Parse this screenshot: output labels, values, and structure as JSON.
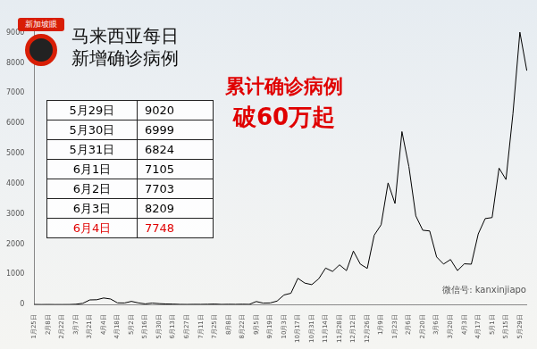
{
  "chart_data": {
    "type": "line",
    "title": "马来西亚每日新增确诊病例",
    "annotations": [
      "累计确诊病例",
      "破60万起"
    ],
    "categories": [
      "1月25日",
      null,
      "2月8日",
      null,
      "2月22日",
      null,
      "3月7日",
      null,
      "3月21日",
      null,
      "4月4日",
      null,
      "4月18日",
      null,
      "5月2日",
      null,
      "5月16日",
      null,
      "5月30日",
      null,
      "6月13日",
      null,
      "6月27日",
      null,
      "7月11日",
      null,
      "7月25日",
      null,
      "8月8日",
      null,
      "8月22日",
      null,
      "9月5日",
      null,
      "9月19日",
      null,
      "10月3日",
      null,
      "10月17日",
      null,
      "10月31日",
      null,
      "11月14日",
      null,
      "11月28日",
      null,
      "12月12日",
      null,
      "12月26日",
      null,
      "1月9日",
      null,
      "1月23日",
      null,
      "2月6日",
      null,
      "2月20日",
      null,
      "3月6日",
      null,
      "3月20日",
      null,
      "4月3日",
      null,
      "4月17日",
      null,
      "5月1日",
      null,
      "5月15日",
      null,
      "5月29日",
      null
    ],
    "values": [
      3,
      0,
      2,
      0,
      0,
      1,
      10,
      41,
      153,
      159,
      217,
      184,
      54,
      51,
      105,
      54,
      22,
      48,
      30,
      19,
      15,
      6,
      4,
      7,
      6,
      10,
      16,
      5,
      9,
      6,
      11,
      6,
      100,
      47,
      52,
      115,
      317,
      374,
      869,
      710,
      659,
      852,
      1208,
      1096,
      1315,
      1123,
      1772,
      1340,
      1196,
      2295,
      2643,
      4029,
      3346,
      5728,
      4571,
      2936,
      2461,
      2437,
      1575,
      1340,
      1492,
      1124,
      1349,
      1336,
      2340,
      2847,
      2881,
      4519,
      4140,
      6320,
      9020,
      7748
    ],
    "color": "#000000",
    "ylim": [
      0,
      9200
    ],
    "yticks": [
      0,
      1000,
      2000,
      3000,
      4000,
      5000,
      6000,
      7000,
      8000,
      9000
    ],
    "grid": false
  },
  "logo": "新加坡眼",
  "table": {
    "rows": [
      {
        "date": "5月29日",
        "value": 9020,
        "color": "#000000"
      },
      {
        "date": "5月30日",
        "value": 6999,
        "color": "#000000"
      },
      {
        "date": "5月31日",
        "value": 6824,
        "color": "#000000"
      },
      {
        "date": "6月1日",
        "value": 7105,
        "color": "#000000"
      },
      {
        "date": "6月2日",
        "value": 7703,
        "color": "#000000"
      },
      {
        "date": "6月3日",
        "value": 8209,
        "color": "#000000"
      },
      {
        "date": "6月4日",
        "value": 7748,
        "color": "#e00000"
      }
    ]
  },
  "watermark": "微信号: kanxinjiapo"
}
